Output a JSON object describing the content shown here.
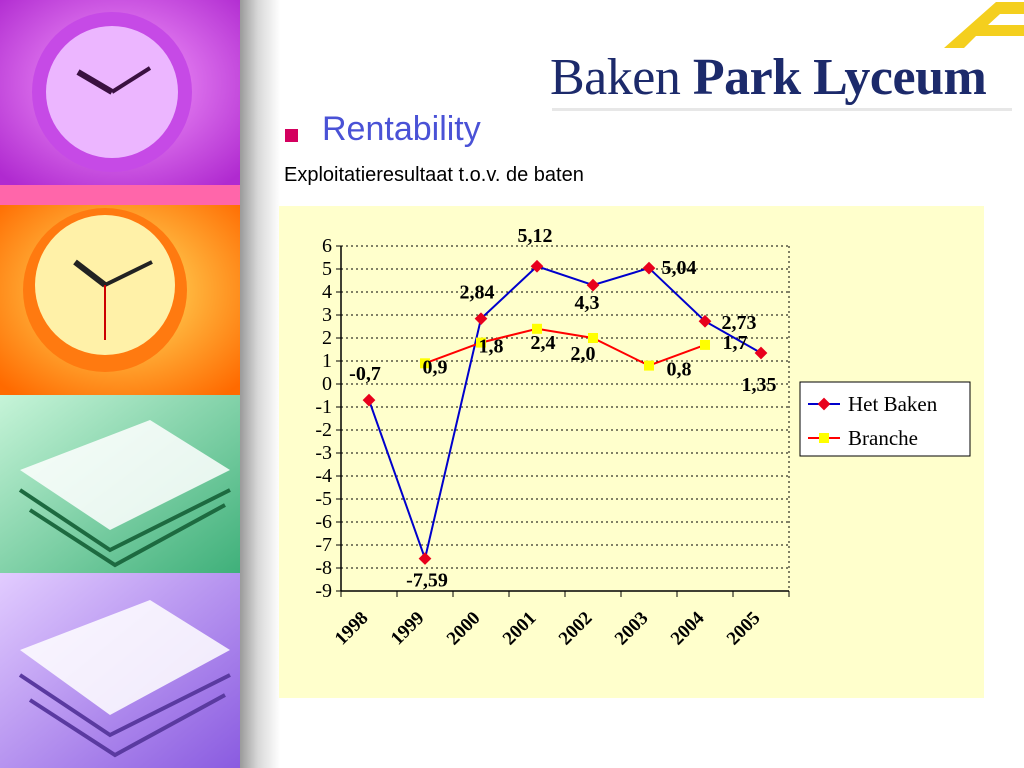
{
  "header": {
    "logo_light": "Baken",
    "logo_bold": "Park Lyceum",
    "heading": "Rentability",
    "subheading": "Exploitatieresultaat t.o.v. de baten"
  },
  "colors": {
    "accent": "#4a52d6",
    "bullet": "#d4005f",
    "chart_bg": "#ffffcc",
    "series_het_baken": "#0000cc",
    "marker_het_baken": "#e8001c",
    "series_branche": "#ff0000",
    "marker_branche": "#ffff00"
  },
  "icons": [
    "clock-photo",
    "books-photo",
    "logo-mark-icon"
  ],
  "chart_data": {
    "type": "line",
    "categories": [
      "1998",
      "1999",
      "2000",
      "2001",
      "2002",
      "2003",
      "2004",
      "2005"
    ],
    "ylim": [
      -9,
      6
    ],
    "yticks": [
      "6",
      "5",
      "4",
      "3",
      "2",
      "1",
      "0",
      "-1",
      "-2",
      "-3",
      "-4",
      "-5",
      "-6",
      "-7",
      "-8",
      "-9"
    ],
    "grid": true,
    "legend": "right",
    "series": [
      {
        "name": "Het Baken",
        "x": [
          1998.5,
          1999.5,
          2000.5,
          2001.5,
          2002.5,
          2003.5,
          2004.5,
          2005.5
        ],
        "values": [
          -0.7,
          -7.59,
          2.84,
          5.12,
          4.3,
          5.04,
          2.73,
          1.35
        ],
        "labels": [
          "-0,7",
          "-7,59",
          "2,84",
          "5,12",
          "4,3",
          "5,04",
          "2,73",
          "1,35"
        ]
      },
      {
        "name": "Branche",
        "x": [
          1999.5,
          2000.5,
          2001.5,
          2002.5,
          2003.5,
          2004.5
        ],
        "values": [
          0.9,
          1.8,
          2.4,
          2.0,
          0.8,
          1.7
        ],
        "labels": [
          "0,9",
          "1,8",
          "2,4",
          "2,0",
          "0,8",
          "1,7"
        ]
      }
    ]
  }
}
